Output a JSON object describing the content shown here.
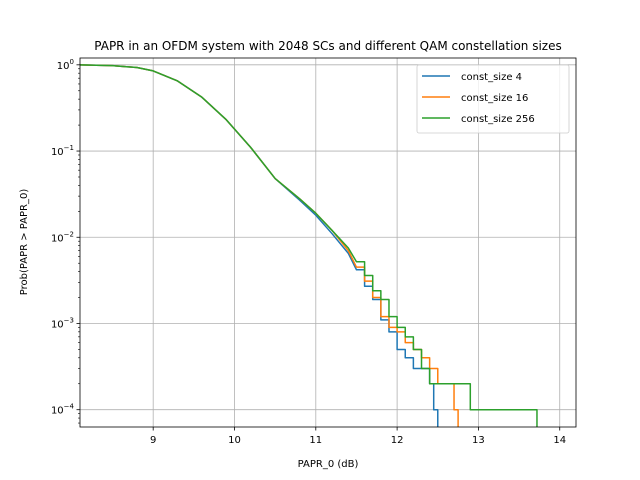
{
  "chart_data": {
    "type": "line",
    "title": "PAPR in an OFDM system with 2048 SCs and different QAM constellation sizes",
    "xlabel": "PAPR_0 (dB)",
    "ylabel": "Prob(PAPR > PAPR_0)",
    "xlim": [
      8.1,
      14.2
    ],
    "ylim": [
      6.3e-05,
      1.2
    ],
    "yscale": "log",
    "grid": true,
    "legend_position": "top-right",
    "x_ticks": [
      9,
      10,
      11,
      12,
      13,
      14
    ],
    "x_tick_labels": [
      "9",
      "10",
      "11",
      "12",
      "13",
      "14"
    ],
    "y_ticks": [
      0.0001,
      0.001,
      0.01,
      0.1,
      1
    ],
    "y_tick_labels": [
      "10^-4",
      "10^-3",
      "10^-2",
      "10^-1",
      "10^0"
    ],
    "step_from_x": 11.5,
    "series": [
      {
        "name": "const_size 4",
        "color": "#1f77b4",
        "x": [
          8.1,
          8.5,
          8.8,
          9.0,
          9.3,
          9.6,
          9.9,
          10.2,
          10.5,
          10.8,
          11.0,
          11.2,
          11.4,
          11.5,
          11.6,
          11.7,
          11.8,
          11.9,
          12.0,
          12.1,
          12.2,
          12.3,
          12.4,
          12.45,
          12.5
        ],
        "y": [
          1.0,
          0.98,
          0.93,
          0.85,
          0.65,
          0.42,
          0.23,
          0.11,
          0.048,
          0.027,
          0.018,
          0.011,
          0.0065,
          0.0042,
          0.0027,
          0.0019,
          0.0011,
          0.0008,
          0.0005,
          0.0004,
          0.0003,
          0.0003,
          0.0002,
          0.0001,
          6e-05
        ]
      },
      {
        "name": "const_size 16",
        "color": "#ff7f0e",
        "x": [
          8.1,
          8.5,
          8.8,
          9.0,
          9.3,
          9.6,
          9.9,
          10.2,
          10.5,
          10.8,
          11.0,
          11.2,
          11.4,
          11.5,
          11.6,
          11.7,
          11.8,
          11.9,
          12.0,
          12.1,
          12.2,
          12.3,
          12.4,
          12.5,
          12.6,
          12.7,
          12.75
        ],
        "y": [
          1.0,
          0.98,
          0.93,
          0.85,
          0.65,
          0.42,
          0.23,
          0.11,
          0.048,
          0.028,
          0.019,
          0.012,
          0.007,
          0.0045,
          0.0031,
          0.002,
          0.0012,
          0.0009,
          0.0008,
          0.0006,
          0.0005,
          0.0004,
          0.0003,
          0.0002,
          0.0002,
          0.0001,
          6e-05
        ]
      },
      {
        "name": "const_size 256",
        "color": "#2ca02c",
        "x": [
          8.1,
          8.5,
          8.8,
          9.0,
          9.3,
          9.6,
          9.9,
          10.2,
          10.5,
          10.8,
          11.0,
          11.2,
          11.4,
          11.5,
          11.6,
          11.7,
          11.8,
          11.9,
          12.0,
          12.1,
          12.2,
          12.3,
          12.4,
          12.6,
          12.9,
          13.7,
          13.72
        ],
        "y": [
          1.0,
          0.98,
          0.93,
          0.85,
          0.65,
          0.42,
          0.23,
          0.11,
          0.048,
          0.028,
          0.019,
          0.012,
          0.0075,
          0.0052,
          0.0036,
          0.0024,
          0.0019,
          0.0012,
          0.0009,
          0.0007,
          0.0005,
          0.0003,
          0.0002,
          0.0002,
          0.0001,
          0.0001,
          6e-05
        ]
      }
    ]
  }
}
